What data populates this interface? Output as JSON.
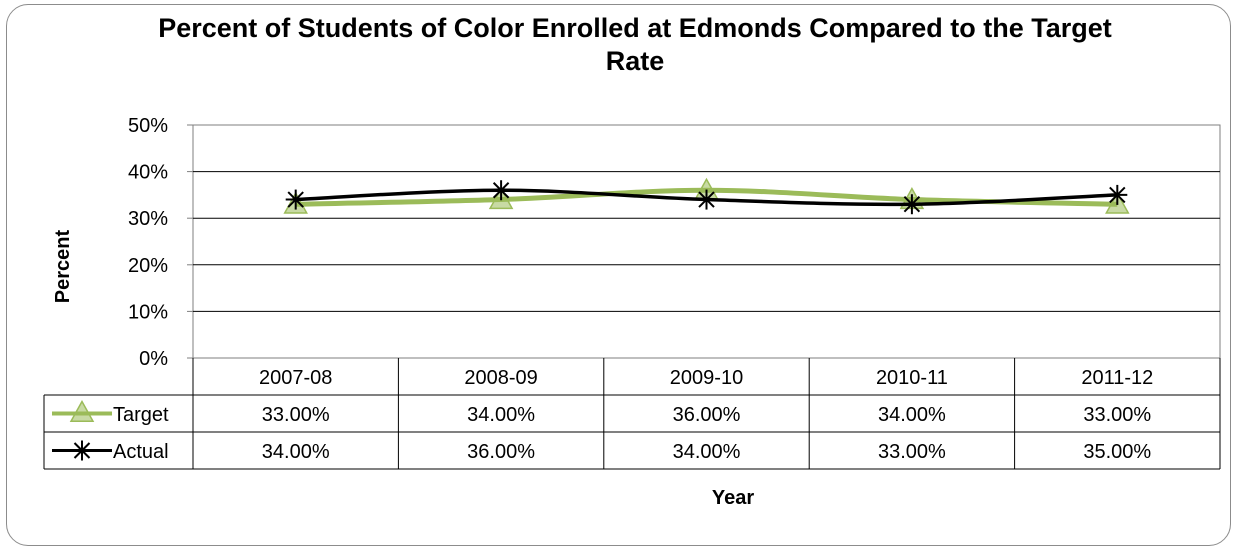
{
  "chart_data": {
    "type": "line",
    "title": "Percent of Students of Color Enrolled at Edmonds Compared to the Target Rate",
    "xlabel": "Year",
    "ylabel": "Percent",
    "categories": [
      "2007-08",
      "2008-09",
      "2009-10",
      "2010-11",
      "2011-12"
    ],
    "ylim": [
      0,
      50
    ],
    "y_ticks": [
      "0%",
      "10%",
      "20%",
      "30%",
      "40%",
      "50%"
    ],
    "grid": true,
    "legend": "data-table",
    "series": [
      {
        "name": "Target",
        "values": [
          33,
          34,
          36,
          34,
          33
        ],
        "labels": [
          "33.00%",
          "34.00%",
          "36.00%",
          "34.00%",
          "33.00%"
        ],
        "color": "#9bbb59",
        "marker": "triangle"
      },
      {
        "name": "Actual",
        "values": [
          34,
          36,
          34,
          33,
          35
        ],
        "labels": [
          "34.00%",
          "36.00%",
          "34.00%",
          "33.00%",
          "35.00%"
        ],
        "color": "#000000",
        "marker": "star"
      }
    ]
  }
}
